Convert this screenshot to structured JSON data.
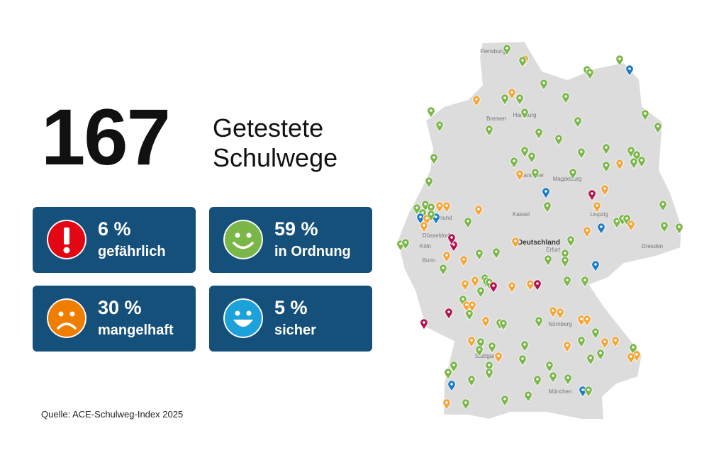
{
  "headline": {
    "number": "167",
    "line1": "Getestete",
    "line2": "Schulwege"
  },
  "tiles": [
    {
      "percent": "6 %",
      "label": "gefährlich"
    },
    {
      "percent": "59 %",
      "label": "in Ordnung"
    },
    {
      "percent": "30 %",
      "label": "mangelhaft"
    },
    {
      "percent": "5 %",
      "label": "sicher"
    }
  ],
  "map": {
    "labels": [
      "Deutschland",
      "Hamburg",
      "Hannover",
      "Dortmund",
      "Düsseldorf",
      "Köln",
      "Bonn",
      "Kassel",
      "Erfurt",
      "Leipzig",
      "Dresden",
      "Nürnberg",
      "Stuttgart",
      "München",
      "Bremen",
      "Magdeburg",
      "Flensburg"
    ]
  },
  "source": "Quelle: ACE-Schulweg-Index 2025"
}
